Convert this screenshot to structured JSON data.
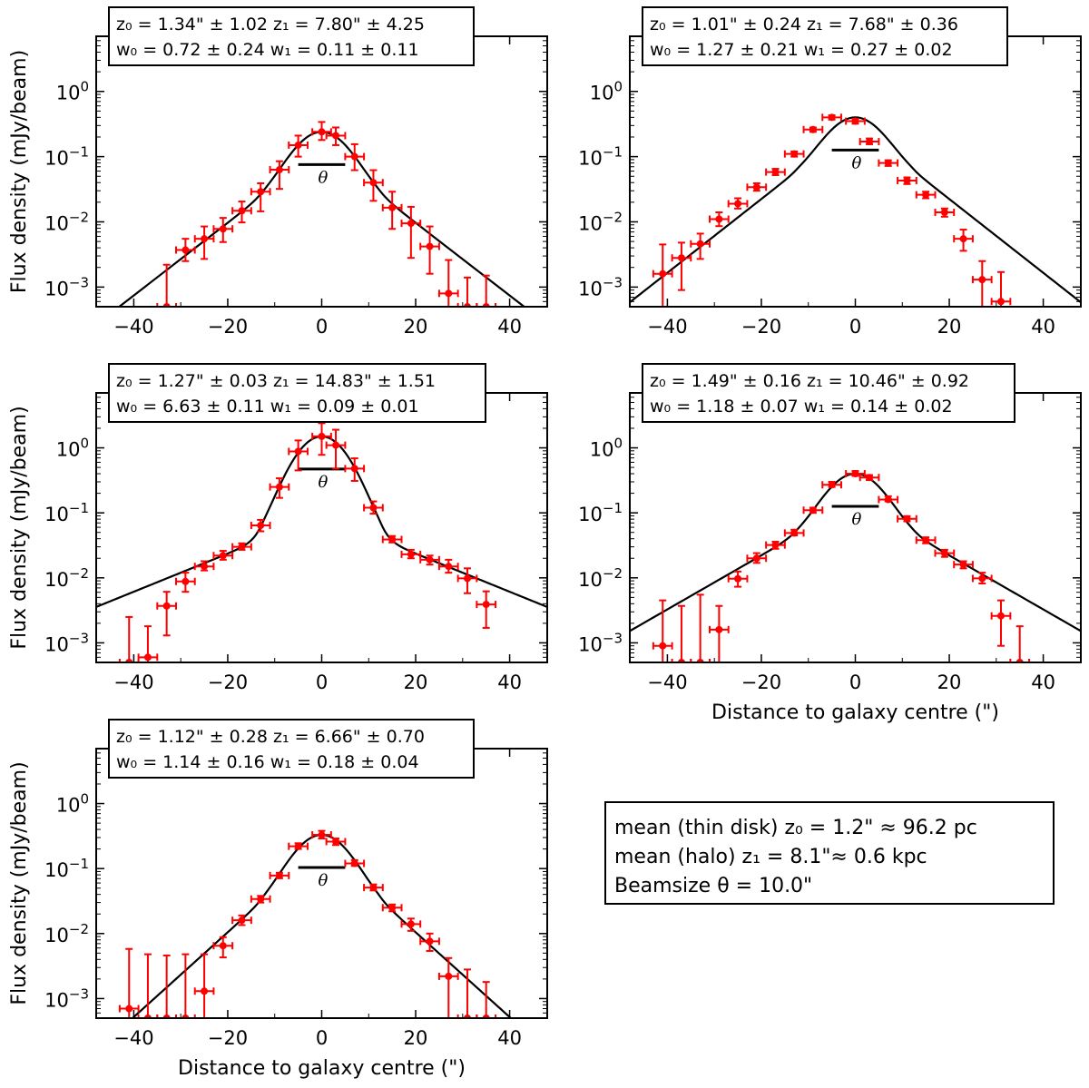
{
  "chart_data": [
    {
      "type": "scatter",
      "xlabel": "",
      "ylabel": "Flux density (mJy/beam)",
      "xlim": [
        -48,
        48
      ],
      "ylim": [
        0.0005,
        7
      ],
      "yscale": "log",
      "x_ticks": [
        -40,
        -20,
        0,
        20,
        40
      ],
      "y_ticks": [
        0.001,
        0.01,
        0.1,
        1
      ],
      "fit_params": {
        "z0": 1.34,
        "z1": 7.8,
        "w0": 0.72,
        "w1": 0.11,
        "beam": 10.0
      },
      "annotation": {
        "line1": "z₀ = 1.34\" ± 1.02 z₁ = 7.80\" ± 4.25",
        "line2": "w₀ = 0.72 ± 0.24 w₁ = 0.11 ± 0.11"
      },
      "beam_label": "θ",
      "series": [
        {
          "points": [
            {
              "x": -33,
              "y": 0.0005,
              "err_lo": 0.0001,
              "err_hi": 0.0022
            },
            {
              "x": -29,
              "y": 0.0037,
              "err_lo": 0.0025,
              "err_hi": 0.0055
            },
            {
              "x": -25,
              "y": 0.0055,
              "err_lo": 0.0027,
              "err_hi": 0.0085
            },
            {
              "x": -21,
              "y": 0.0078,
              "err_lo": 0.0049,
              "err_hi": 0.0115
            },
            {
              "x": -17,
              "y": 0.0148,
              "err_lo": 0.0098,
              "err_hi": 0.0205
            },
            {
              "x": -13,
              "y": 0.029,
              "err_lo": 0.0145,
              "err_hi": 0.039
            },
            {
              "x": -9,
              "y": 0.063,
              "err_lo": 0.032,
              "err_hi": 0.085
            },
            {
              "x": -5,
              "y": 0.15,
              "err_lo": 0.1,
              "err_hi": 0.21
            },
            {
              "x": 0,
              "y": 0.24,
              "err_lo": 0.18,
              "err_hi": 0.34
            },
            {
              "x": 3,
              "y": 0.21,
              "err_lo": 0.15,
              "err_hi": 0.28
            },
            {
              "x": 7,
              "y": 0.1,
              "err_lo": 0.062,
              "err_hi": 0.155
            },
            {
              "x": 11,
              "y": 0.04,
              "err_lo": 0.021,
              "err_hi": 0.062
            },
            {
              "x": 15,
              "y": 0.0165,
              "err_lo": 0.0078,
              "err_hi": 0.029
            },
            {
              "x": 19,
              "y": 0.0095,
              "err_lo": 0.0028,
              "err_hi": 0.017
            },
            {
              "x": 23,
              "y": 0.0042,
              "err_lo": 0.0016,
              "err_hi": 0.0085
            },
            {
              "x": 27,
              "y": 0.0008,
              "err_lo": 0.0005,
              "err_hi": 0.0026
            },
            {
              "x": 31,
              "y": 0.0005,
              "err_lo": 0.0001,
              "err_hi": 0.0014
            },
            {
              "x": 35,
              "y": 0.0005,
              "err_lo": 0.0001,
              "err_hi": 0.0015
            }
          ]
        }
      ]
    },
    {
      "type": "scatter",
      "xlabel": "",
      "ylabel": "",
      "xlim": [
        -48,
        48
      ],
      "ylim": [
        0.0005,
        7
      ],
      "yscale": "log",
      "x_ticks": [
        -40,
        -20,
        0,
        20,
        40
      ],
      "y_ticks": [
        0.001,
        0.01,
        0.1,
        1
      ],
      "fit_params": {
        "z0": 1.01,
        "z1": 7.68,
        "w0": 1.27,
        "w1": 0.27,
        "beam": 10.0
      },
      "annotation": {
        "line1": "z₀ = 1.01\" ± 0.24 z₁ = 7.68\" ± 0.36",
        "line2": "w₀ = 1.27 ± 0.21 w₁ = 0.27 ± 0.02"
      },
      "beam_label": "θ",
      "series": [
        {
          "points": [
            {
              "x": -41,
              "y": 0.0016,
              "err_lo": 0.0005,
              "err_hi": 0.0045
            },
            {
              "x": -37,
              "y": 0.0028,
              "err_lo": 0.0009,
              "err_hi": 0.0048
            },
            {
              "x": -33,
              "y": 0.0046,
              "err_lo": 0.0027,
              "err_hi": 0.0066
            },
            {
              "x": -29,
              "y": 0.011,
              "err_lo": 0.0086,
              "err_hi": 0.014
            },
            {
              "x": -25,
              "y": 0.019,
              "err_lo": 0.016,
              "err_hi": 0.023
            },
            {
              "x": -21,
              "y": 0.034,
              "err_lo": 0.03,
              "err_hi": 0.039
            },
            {
              "x": -17,
              "y": 0.058,
              "err_lo": 0.052,
              "err_hi": 0.065
            },
            {
              "x": -13,
              "y": 0.11,
              "err_lo": 0.1,
              "err_hi": 0.12
            },
            {
              "x": -9,
              "y": 0.26,
              "err_lo": 0.24,
              "err_hi": 0.28
            },
            {
              "x": -5,
              "y": 0.4,
              "err_lo": 0.37,
              "err_hi": 0.43
            },
            {
              "x": 0,
              "y": 0.35,
              "err_lo": 0.32,
              "err_hi": 0.38
            },
            {
              "x": 3,
              "y": 0.17,
              "err_lo": 0.155,
              "err_hi": 0.19
            },
            {
              "x": 7,
              "y": 0.08,
              "err_lo": 0.072,
              "err_hi": 0.088
            },
            {
              "x": 11,
              "y": 0.043,
              "err_lo": 0.038,
              "err_hi": 0.048
            },
            {
              "x": 15,
              "y": 0.026,
              "err_lo": 0.023,
              "err_hi": 0.029
            },
            {
              "x": 19,
              "y": 0.014,
              "err_lo": 0.012,
              "err_hi": 0.016
            },
            {
              "x": 23,
              "y": 0.0055,
              "err_lo": 0.0036,
              "err_hi": 0.0076
            },
            {
              "x": 27,
              "y": 0.0013,
              "err_lo": 0.0005,
              "err_hi": 0.0025
            },
            {
              "x": 31,
              "y": 0.0006,
              "err_lo": 0.0005,
              "err_hi": 0.0017
            }
          ]
        }
      ]
    },
    {
      "type": "scatter",
      "xlabel": "",
      "ylabel": "Flux density (mJy/beam)",
      "xlim": [
        -48,
        48
      ],
      "ylim": [
        0.0005,
        7
      ],
      "yscale": "log",
      "x_ticks": [
        -40,
        -20,
        0,
        20,
        40
      ],
      "y_ticks": [
        0.001,
        0.01,
        0.1,
        1
      ],
      "fit_params": {
        "z0": 1.27,
        "z1": 14.83,
        "w0": 6.63,
        "w1": 0.09,
        "beam": 10.0
      },
      "annotation": {
        "line1": "z₀ = 1.27\" ± 0.03 z₁ = 14.83\" ± 1.51",
        "line2": "w₀ = 6.63 ± 0.11 w₁ = 0.09 ± 0.01"
      },
      "beam_label": "θ",
      "series": [
        {
          "points": [
            {
              "x": -41,
              "y": 0.0005,
              "err_lo": 0.0001,
              "err_hi": 0.0025
            },
            {
              "x": -37,
              "y": 0.0006,
              "err_lo": 0.0005,
              "err_hi": 0.0018
            },
            {
              "x": -33,
              "y": 0.0037,
              "err_lo": 0.0013,
              "err_hi": 0.0061
            },
            {
              "x": -29,
              "y": 0.0088,
              "err_lo": 0.0061,
              "err_hi": 0.012
            },
            {
              "x": -25,
              "y": 0.015,
              "err_lo": 0.013,
              "err_hi": 0.018
            },
            {
              "x": -21,
              "y": 0.022,
              "err_lo": 0.019,
              "err_hi": 0.026
            },
            {
              "x": -17,
              "y": 0.03,
              "err_lo": 0.027,
              "err_hi": 0.034
            },
            {
              "x": -13,
              "y": 0.064,
              "err_lo": 0.052,
              "err_hi": 0.078
            },
            {
              "x": -9,
              "y": 0.25,
              "err_lo": 0.17,
              "err_hi": 0.34
            },
            {
              "x": -5,
              "y": 0.88,
              "err_lo": 0.45,
              "err_hi": 1.3
            },
            {
              "x": 0,
              "y": 1.5,
              "err_lo": 0.78,
              "err_hi": 2.4
            },
            {
              "x": 3,
              "y": 1.1,
              "err_lo": 0.48,
              "err_hi": 1.9
            },
            {
              "x": 7,
              "y": 0.48,
              "err_lo": 0.31,
              "err_hi": 0.69
            },
            {
              "x": 11,
              "y": 0.12,
              "err_lo": 0.097,
              "err_hi": 0.15
            },
            {
              "x": 15,
              "y": 0.039,
              "err_lo": 0.035,
              "err_hi": 0.044
            },
            {
              "x": 19,
              "y": 0.023,
              "err_lo": 0.02,
              "err_hi": 0.027
            },
            {
              "x": 23,
              "y": 0.019,
              "err_lo": 0.016,
              "err_hi": 0.022
            },
            {
              "x": 27,
              "y": 0.015,
              "err_lo": 0.012,
              "err_hi": 0.019
            },
            {
              "x": 31,
              "y": 0.0098,
              "err_lo": 0.0058,
              "err_hi": 0.014
            },
            {
              "x": 35,
              "y": 0.0039,
              "err_lo": 0.0017,
              "err_hi": 0.0062
            }
          ]
        }
      ]
    },
    {
      "type": "scatter",
      "xlabel": "Distance to galaxy centre (\")",
      "ylabel": "",
      "xlim": [
        -48,
        48
      ],
      "ylim": [
        0.0005,
        7
      ],
      "yscale": "log",
      "x_ticks": [
        -40,
        -20,
        0,
        20,
        40
      ],
      "y_ticks": [
        0.001,
        0.01,
        0.1,
        1
      ],
      "fit_params": {
        "z0": 1.49,
        "z1": 10.46,
        "w0": 1.18,
        "w1": 0.14,
        "beam": 10.0
      },
      "annotation": {
        "line1": "z₀ = 1.49\" ± 0.16 z₁ = 10.46\" ± 0.92",
        "line2": "w₀ = 1.18 ± 0.07 w₁ = 0.14 ± 0.02"
      },
      "beam_label": "θ",
      "series": [
        {
          "points": [
            {
              "x": -41,
              "y": 0.0009,
              "err_lo": 0.0005,
              "err_hi": 0.0045
            },
            {
              "x": -37,
              "y": 0.0005,
              "err_lo": 0.0001,
              "err_hi": 0.0037
            },
            {
              "x": -33,
              "y": 0.0005,
              "err_lo": 0.0001,
              "err_hi": 0.0055
            },
            {
              "x": -29,
              "y": 0.0016,
              "err_lo": 0.0005,
              "err_hi": 0.0037
            },
            {
              "x": -25,
              "y": 0.0097,
              "err_lo": 0.0073,
              "err_hi": 0.0125
            },
            {
              "x": -21,
              "y": 0.02,
              "err_lo": 0.017,
              "err_hi": 0.024
            },
            {
              "x": -17,
              "y": 0.032,
              "err_lo": 0.028,
              "err_hi": 0.036
            },
            {
              "x": -13,
              "y": 0.049,
              "err_lo": 0.045,
              "err_hi": 0.055
            },
            {
              "x": -9,
              "y": 0.11,
              "err_lo": 0.1,
              "err_hi": 0.12
            },
            {
              "x": -5,
              "y": 0.27,
              "err_lo": 0.25,
              "err_hi": 0.3
            },
            {
              "x": 0,
              "y": 0.4,
              "err_lo": 0.37,
              "err_hi": 0.44
            },
            {
              "x": 3,
              "y": 0.35,
              "err_lo": 0.32,
              "err_hi": 0.38
            },
            {
              "x": 7,
              "y": 0.16,
              "err_lo": 0.15,
              "err_hi": 0.18
            },
            {
              "x": 11,
              "y": 0.081,
              "err_lo": 0.074,
              "err_hi": 0.089
            },
            {
              "x": 15,
              "y": 0.038,
              "err_lo": 0.034,
              "err_hi": 0.042
            },
            {
              "x": 19,
              "y": 0.024,
              "err_lo": 0.021,
              "err_hi": 0.027
            },
            {
              "x": 23,
              "y": 0.016,
              "err_lo": 0.014,
              "err_hi": 0.018
            },
            {
              "x": 27,
              "y": 0.0098,
              "err_lo": 0.0082,
              "err_hi": 0.012
            },
            {
              "x": 31,
              "y": 0.0026,
              "err_lo": 0.0009,
              "err_hi": 0.0045
            },
            {
              "x": 35,
              "y": 0.0005,
              "err_lo": 0.0001,
              "err_hi": 0.0018
            }
          ]
        }
      ]
    },
    {
      "type": "scatter",
      "xlabel": "Distance to galaxy centre (\")",
      "ylabel": "Flux density (mJy/beam)",
      "xlim": [
        -48,
        48
      ],
      "ylim": [
        0.0005,
        7
      ],
      "yscale": "log",
      "x_ticks": [
        -40,
        -20,
        0,
        20,
        40
      ],
      "y_ticks": [
        0.001,
        0.01,
        0.1,
        1
      ],
      "fit_params": {
        "z0": 1.12,
        "z1": 6.66,
        "w0": 1.14,
        "w1": 0.18,
        "beam": 10.0
      },
      "annotation": {
        "line1": "z₀ = 1.12\" ± 0.28 z₁ = 6.66\" ± 0.70",
        "line2": "w₀ = 1.14 ± 0.16 w₁ = 0.18 ± 0.04"
      },
      "beam_label": "θ",
      "series": [
        {
          "points": [
            {
              "x": -41,
              "y": 0.0007,
              "err_lo": 0.0005,
              "err_hi": 0.0058
            },
            {
              "x": -37,
              "y": 0.0005,
              "err_lo": 0.0001,
              "err_hi": 0.0048
            },
            {
              "x": -33,
              "y": 0.0005,
              "err_lo": 0.0001,
              "err_hi": 0.0046
            },
            {
              "x": -29,
              "y": 0.0005,
              "err_lo": 0.0001,
              "err_hi": 0.0048
            },
            {
              "x": -25,
              "y": 0.0013,
              "err_lo": 0.0005,
              "err_hi": 0.0048
            },
            {
              "x": -21,
              "y": 0.0065,
              "err_lo": 0.0043,
              "err_hi": 0.0088
            },
            {
              "x": -17,
              "y": 0.016,
              "err_lo": 0.0135,
              "err_hi": 0.019
            },
            {
              "x": -13,
              "y": 0.034,
              "err_lo": 0.03,
              "err_hi": 0.038
            },
            {
              "x": -9,
              "y": 0.078,
              "err_lo": 0.071,
              "err_hi": 0.086
            },
            {
              "x": -5,
              "y": 0.22,
              "err_lo": 0.2,
              "err_hi": 0.245
            },
            {
              "x": 0,
              "y": 0.33,
              "err_lo": 0.29,
              "err_hi": 0.38
            },
            {
              "x": 3,
              "y": 0.26,
              "err_lo": 0.23,
              "err_hi": 0.29
            },
            {
              "x": 7,
              "y": 0.12,
              "err_lo": 0.11,
              "err_hi": 0.135
            },
            {
              "x": 11,
              "y": 0.051,
              "err_lo": 0.046,
              "err_hi": 0.057
            },
            {
              "x": 15,
              "y": 0.025,
              "err_lo": 0.022,
              "err_hi": 0.028
            },
            {
              "x": 19,
              "y": 0.014,
              "err_lo": 0.011,
              "err_hi": 0.017
            },
            {
              "x": 23,
              "y": 0.0076,
              "err_lo": 0.0054,
              "err_hi": 0.01
            },
            {
              "x": 27,
              "y": 0.0022,
              "err_lo": 0.0005,
              "err_hi": 0.0042
            },
            {
              "x": 31,
              "y": 0.0005,
              "err_lo": 0.0001,
              "err_hi": 0.0028
            },
            {
              "x": 35,
              "y": 0.0005,
              "err_lo": 0.0001,
              "err_hi": 0.0018
            }
          ]
        }
      ]
    }
  ],
  "summary": {
    "line1": "mean (thin disk) z₀ = 1.2\" ≈ 96.2 pc",
    "line2": "mean (halo) z₁ = 8.1\"≈ 0.6 kpc",
    "line3": "Beamsize θ = 10.0\""
  },
  "colors": {
    "points": "#ff0000",
    "fit_line": "#000000",
    "axes": "#000000"
  }
}
